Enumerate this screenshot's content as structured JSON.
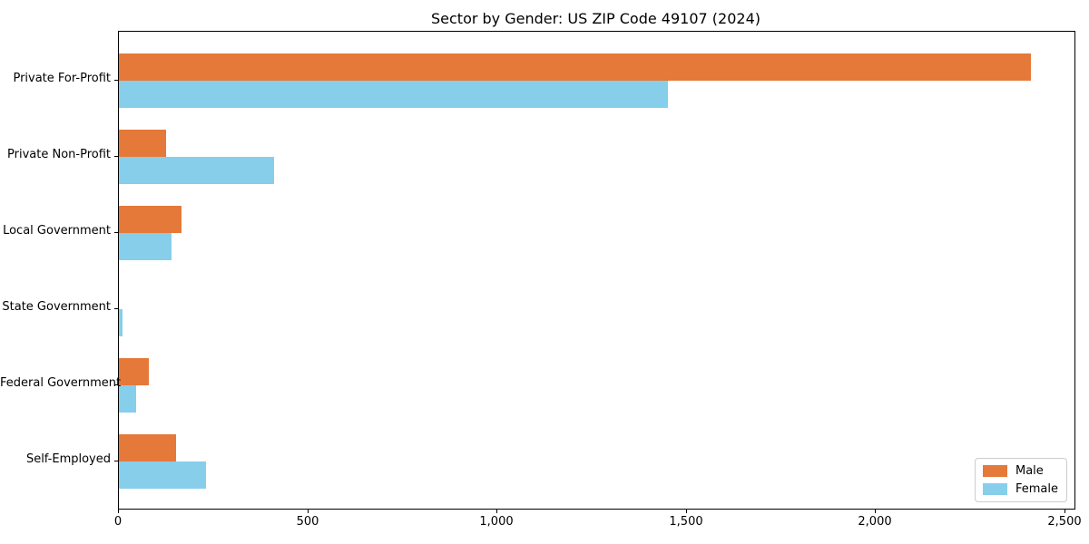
{
  "chart_data": {
    "type": "bar",
    "orientation": "horizontal",
    "title": "Sector by Gender: US ZIP Code 49107 (2024)",
    "categories": [
      "Private For-Profit",
      "Private Non-Profit",
      "Local Government",
      "State Government",
      "Federal Government",
      "Self-Employed"
    ],
    "series": [
      {
        "name": "Male",
        "color": "#e4793a",
        "values": [
          2410,
          125,
          165,
          0,
          80,
          150
        ]
      },
      {
        "name": "Female",
        "color": "#87ceeb",
        "values": [
          1450,
          410,
          140,
          10,
          45,
          230
        ]
      }
    ],
    "xlabel": "",
    "ylabel": "",
    "xlim": [
      0,
      2525
    ],
    "x_ticks": [
      0,
      500,
      1000,
      1500,
      2000,
      2500
    ],
    "x_tick_labels": [
      "0",
      "500",
      "1,000",
      "1,500",
      "2,000",
      "2,500"
    ],
    "grid": false,
    "legend_position": "lower right"
  }
}
